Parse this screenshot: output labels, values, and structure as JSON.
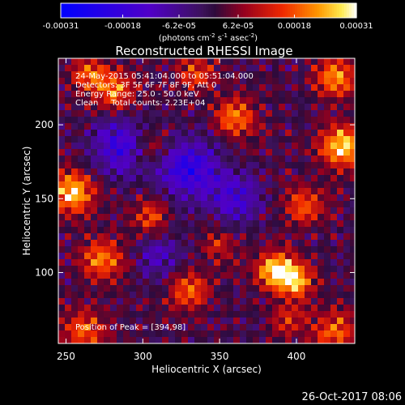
{
  "chart_data": {
    "type": "heatmap",
    "title": "Reconstructed RHESSI Image",
    "xlabel": "Heliocentric X (arcsec)",
    "ylabel": "Heliocentric Y (arcsec)",
    "xlim": [
      245,
      438
    ],
    "ylim": [
      52,
      245
    ],
    "xticks": [
      250,
      300,
      350,
      400
    ],
    "yticks": [
      100,
      150,
      200
    ],
    "colormap": "RHESSI std-gamma (blue-purple-red-orange-yellow-white)",
    "colorbar": {
      "vmin": -0.00031,
      "vmax": 0.00031,
      "tick_values": [
        -0.00031,
        -0.00018,
        -6.2e-05,
        6.2e-05,
        0.00018,
        0.00031
      ],
      "tick_labels": [
        "-0.00031",
        "-0.00018",
        "-6.2e-05",
        "6.2e-05",
        "0.00018",
        "0.00031"
      ],
      "unit_prefix": "(photons cm",
      "unit_sup1": "-2",
      "unit_mid": " s",
      "unit_sup2": "-1",
      "unit_mid2": " asec",
      "unit_sup3": "-2",
      "unit_suffix": ")"
    },
    "annotations": [
      "24-May-2015 05:41:04.000 to 05:51:04.000",
      "Detectors: 3F 5F 6F 7F 8F 9F, Att 0",
      "Energy Range: 25.0 - 50.0 keV",
      "Clean     Total counts: 2.23E+04"
    ],
    "peak_label": "Position of Peak = [394,98]",
    "sources": [
      {
        "x": 388,
        "y": 101,
        "amp": 1.0,
        "sigma": 9
      },
      {
        "x": 401,
        "y": 93,
        "amp": 0.6,
        "sigma": 8
      },
      {
        "x": 254,
        "y": 154,
        "amp": 0.85,
        "sigma": 10
      },
      {
        "x": 274,
        "y": 108,
        "amp": 0.65,
        "sigma": 10
      },
      {
        "x": 330,
        "y": 88,
        "amp": 0.6,
        "sigma": 9
      },
      {
        "x": 282,
        "y": 223,
        "amp": 0.6,
        "sigma": 9
      },
      {
        "x": 265,
        "y": 233,
        "amp": 0.55,
        "sigma": 8
      },
      {
        "x": 430,
        "y": 185,
        "amp": 0.85,
        "sigma": 10
      },
      {
        "x": 425,
        "y": 232,
        "amp": 0.7,
        "sigma": 9
      },
      {
        "x": 360,
        "y": 205,
        "amp": 0.65,
        "sigma": 9
      },
      {
        "x": 405,
        "y": 145,
        "amp": 0.55,
        "sigma": 9
      },
      {
        "x": 305,
        "y": 138,
        "amp": 0.5,
        "sigma": 8
      },
      {
        "x": 262,
        "y": 60,
        "amp": 0.55,
        "sigma": 10
      },
      {
        "x": 425,
        "y": 60,
        "amp": 0.55,
        "sigma": 10
      },
      {
        "x": 395,
        "y": 68,
        "amp": 0.4,
        "sigma": 8
      },
      {
        "x": 305,
        "y": 185,
        "amp": 0.4,
        "sigma": 8
      },
      {
        "x": 335,
        "y": 235,
        "amp": 0.45,
        "sigma": 9
      },
      {
        "x": 350,
        "y": 118,
        "amp": 0.35,
        "sigma": 8
      },
      {
        "x": 285,
        "y": 185,
        "amp": -0.6,
        "sigma": 13
      },
      {
        "x": 330,
        "y": 170,
        "amp": -0.7,
        "sigma": 14
      },
      {
        "x": 360,
        "y": 150,
        "amp": -0.5,
        "sigma": 12
      },
      {
        "x": 310,
        "y": 110,
        "amp": -0.4,
        "sigma": 10
      }
    ]
  },
  "footer": {
    "timestamp": "26-Oct-2017 08:06"
  }
}
